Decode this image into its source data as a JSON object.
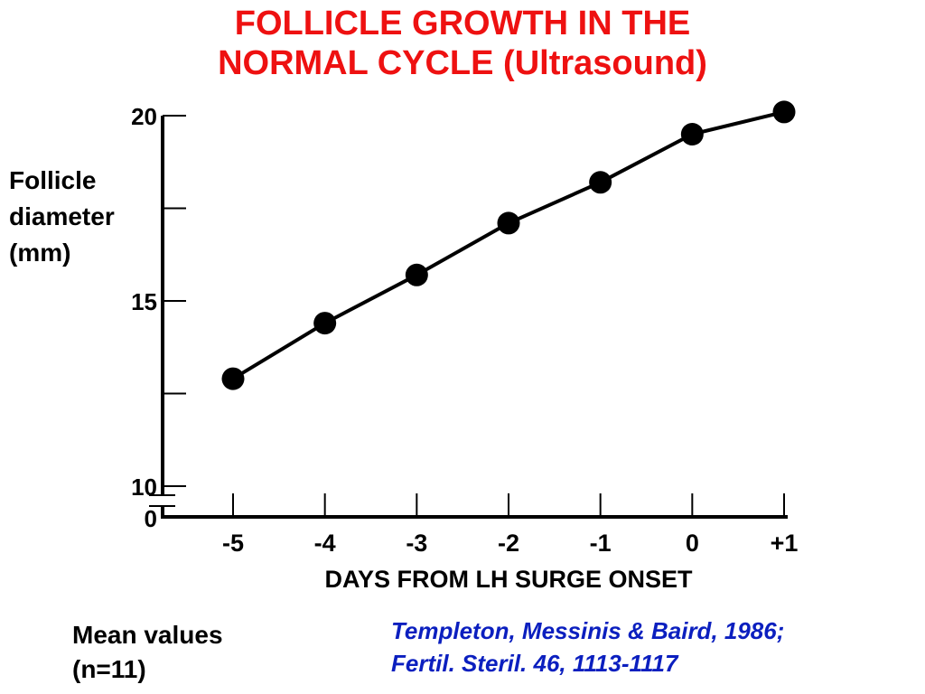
{
  "title_lines": [
    "FOLLICLE GROWTH IN THE",
    "NORMAL CYCLE (Ultrasound)"
  ],
  "ylabel_lines": [
    "Follicle",
    "diameter",
    "(mm)"
  ],
  "footnote_lines": [
    "Mean values",
    "(n=11)"
  ],
  "citation_lines": [
    "Templeton, Messinis & Baird, 1986;",
    "Fertil. Steril. 46, 1113-1117"
  ],
  "colors": {
    "title": "#ee1111",
    "citation": "#0b1fbf",
    "series": "#000000"
  },
  "chart_data": {
    "type": "line",
    "title": "FOLLICLE GROWTH IN THE NORMAL CYCLE (Ultrasound)",
    "xlabel": "DAYS FROM LH SURGE ONSET",
    "ylabel": "Follicle diameter (mm)",
    "x_tick_labels": [
      "-5",
      "-4",
      "-3",
      "-2",
      "-1",
      "0",
      "+1"
    ],
    "y_tick_labels": [
      "0",
      "10",
      "15",
      "20"
    ],
    "y_axis_break": "between 0 and 10",
    "ylim": [
      10,
      20
    ],
    "grid": false,
    "legend": "none",
    "series": [
      {
        "x": [
          -5,
          -4,
          -3,
          -2,
          -1,
          0,
          1
        ],
        "values": [
          12.9,
          14.4,
          15.7,
          17.1,
          18.2,
          19.5,
          20.1
        ]
      }
    ]
  }
}
